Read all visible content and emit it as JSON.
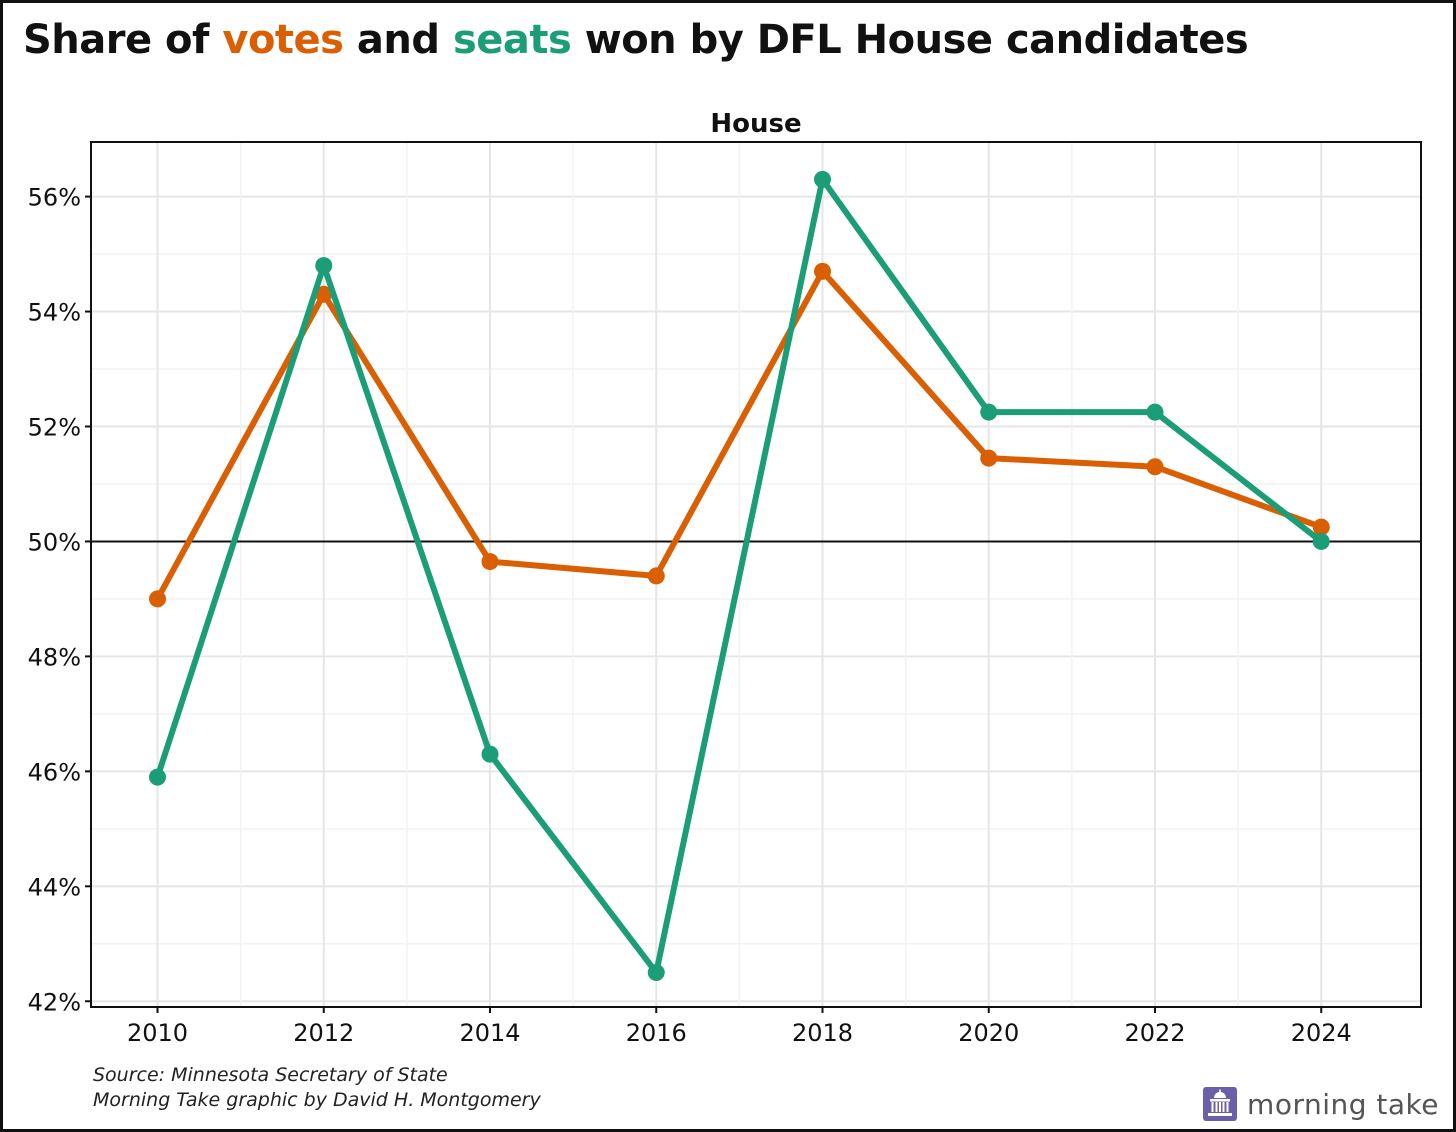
{
  "title": {
    "part1": "Share of ",
    "part2": "votes",
    "part3": " and ",
    "part4": "seats",
    "part5": " won by DFL House candidates"
  },
  "colors": {
    "votes": "#d95f02",
    "seats": "#1b9e77"
  },
  "chart_data": {
    "type": "line",
    "title": "House",
    "x": [
      2010,
      2012,
      2014,
      2016,
      2018,
      2020,
      2022,
      2024
    ],
    "series": [
      {
        "key": "votes",
        "values": [
          49.0,
          54.3,
          49.65,
          49.4,
          54.7,
          51.45,
          51.3,
          50.25
        ]
      },
      {
        "key": "seats",
        "values": [
          45.9,
          54.8,
          46.3,
          42.5,
          56.3,
          52.25,
          52.25,
          50.0
        ]
      }
    ],
    "xlim": [
      2009.2,
      2025.2
    ],
    "ylim": [
      41.9,
      56.95
    ],
    "x_ticks": [
      "2010",
      "2012",
      "2014",
      "2016",
      "2018",
      "2020",
      "2022",
      "2024"
    ],
    "y_ticks": [
      {
        "value": 42,
        "label": "42%"
      },
      {
        "value": 44,
        "label": "44%"
      },
      {
        "value": 46,
        "label": "46%"
      },
      {
        "value": 48,
        "label": "48%"
      },
      {
        "value": 50,
        "label": "50%"
      },
      {
        "value": 52,
        "label": "52%"
      },
      {
        "value": 54,
        "label": "54%"
      },
      {
        "value": 56,
        "label": "56%"
      }
    ],
    "reference_line": 50,
    "grid": true
  },
  "source": {
    "line1": "Source: Minnesota Secretary of State",
    "line2": "Morning Take graphic by David H. Montgomery"
  },
  "brand": {
    "text": "morning take",
    "icon": "capitol-icon",
    "icon_color": "#6b5fa8"
  }
}
